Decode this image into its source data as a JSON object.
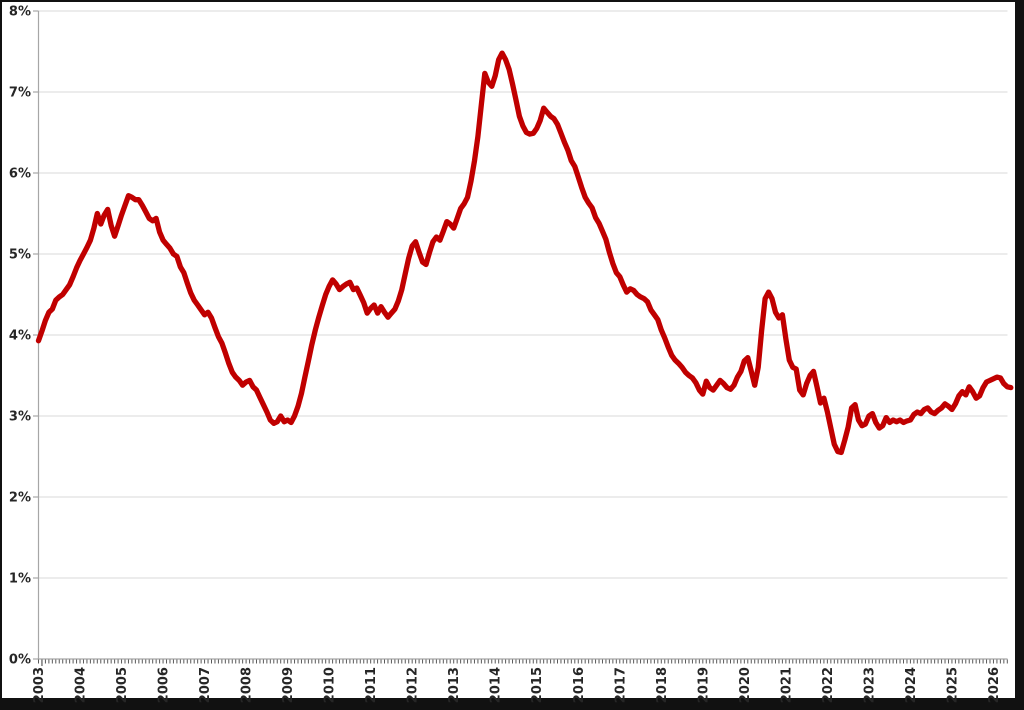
{
  "chart_data": {
    "type": "line",
    "title": "",
    "x_axis_labels": [
      "2003",
      "2004",
      "2005",
      "2006",
      "2007",
      "2008",
      "2009",
      "2010",
      "2011",
      "2012",
      "2013",
      "2014",
      "2015",
      "2016",
      "2017",
      "2018",
      "2019",
      "2020",
      "2021",
      "2022",
      "2023",
      "2024",
      "2025",
      "2026"
    ],
    "y_axis_labels": [
      "0%",
      "1%",
      "2%",
      "3%",
      "4%",
      "5%",
      "6%",
      "7%",
      "8%"
    ],
    "x_start_month": "2003-01",
    "x_end_month": "2026-06",
    "frequency": "monthly",
    "ylim": [
      0,
      8
    ],
    "grid": "horizontal",
    "legend": "none",
    "series": [
      {
        "name": "percentage",
        "values": [
          3.93,
          4.05,
          4.18,
          4.28,
          4.32,
          4.43,
          4.47,
          4.5,
          4.56,
          4.62,
          4.72,
          4.83,
          4.92,
          5.0,
          5.08,
          5.17,
          5.32,
          5.5,
          5.37,
          5.48,
          5.55,
          5.35,
          5.22,
          5.35,
          5.48,
          5.6,
          5.72,
          5.7,
          5.67,
          5.67,
          5.6,
          5.52,
          5.44,
          5.41,
          5.44,
          5.27,
          5.17,
          5.12,
          5.07,
          5.0,
          4.97,
          4.84,
          4.77,
          4.64,
          4.52,
          4.43,
          4.37,
          4.31,
          4.25,
          4.28,
          4.21,
          4.09,
          3.98,
          3.9,
          3.78,
          3.65,
          3.54,
          3.48,
          3.44,
          3.38,
          3.42,
          3.44,
          3.36,
          3.32,
          3.23,
          3.14,
          3.05,
          2.95,
          2.91,
          2.93,
          3.0,
          2.93,
          2.95,
          2.92,
          3.0,
          3.12,
          3.28,
          3.48,
          3.68,
          3.88,
          4.06,
          4.22,
          4.36,
          4.5,
          4.6,
          4.68,
          4.63,
          4.56,
          4.6,
          4.63,
          4.65,
          4.56,
          4.58,
          4.49,
          4.4,
          4.27,
          4.33,
          4.37,
          4.27,
          4.35,
          4.28,
          4.22,
          4.27,
          4.32,
          4.42,
          4.56,
          4.76,
          4.95,
          5.1,
          5.15,
          5.02,
          4.9,
          4.87,
          5.02,
          5.15,
          5.21,
          5.17,
          5.28,
          5.4,
          5.37,
          5.32,
          5.44,
          5.56,
          5.62,
          5.7,
          5.9,
          6.15,
          6.45,
          6.85,
          7.23,
          7.12,
          7.07,
          7.2,
          7.4,
          7.48,
          7.4,
          7.28,
          7.1,
          6.9,
          6.7,
          6.58,
          6.5,
          6.48,
          6.49,
          6.55,
          6.65,
          6.8,
          6.75,
          6.7,
          6.67,
          6.6,
          6.49,
          6.38,
          6.28,
          6.15,
          6.08,
          5.95,
          5.82,
          5.7,
          5.63,
          5.57,
          5.45,
          5.38,
          5.28,
          5.18,
          5.02,
          4.88,
          4.77,
          4.72,
          4.62,
          4.53,
          4.57,
          4.55,
          4.5,
          4.47,
          4.45,
          4.41,
          4.31,
          4.25,
          4.19,
          4.06,
          3.96,
          3.85,
          3.75,
          3.69,
          3.65,
          3.6,
          3.54,
          3.5,
          3.47,
          3.41,
          3.32,
          3.27,
          3.43,
          3.35,
          3.32,
          3.38,
          3.44,
          3.4,
          3.35,
          3.33,
          3.38,
          3.48,
          3.55,
          3.68,
          3.72,
          3.55,
          3.38,
          3.6,
          4.05,
          4.45,
          4.53,
          4.45,
          4.28,
          4.21,
          4.25,
          3.95,
          3.69,
          3.6,
          3.58,
          3.32,
          3.26,
          3.4,
          3.5,
          3.55,
          3.36,
          3.16,
          3.22,
          3.05,
          2.85,
          2.65,
          2.56,
          2.55,
          2.7,
          2.86,
          3.1,
          3.14,
          2.95,
          2.88,
          2.9,
          3.0,
          3.03,
          2.92,
          2.85,
          2.88,
          2.98,
          2.92,
          2.95,
          2.93,
          2.95,
          2.92,
          2.94,
          2.95,
          3.02,
          3.05,
          3.03,
          3.08,
          3.1,
          3.05,
          3.03,
          3.07,
          3.1,
          3.15,
          3.12,
          3.08,
          3.15,
          3.25,
          3.3,
          3.26,
          3.36,
          3.3,
          3.22,
          3.25,
          3.35,
          3.42,
          3.44,
          3.46,
          3.48,
          3.47,
          3.4,
          3.36,
          3.35
        ]
      }
    ],
    "colors": {
      "line": "#C00000",
      "grid": "#D9D9D9",
      "axis": "#A6A6A6",
      "tick": "#595959",
      "label": "#262626",
      "plot_background": "#FFFFFF",
      "outer_frame": "#111111"
    }
  }
}
